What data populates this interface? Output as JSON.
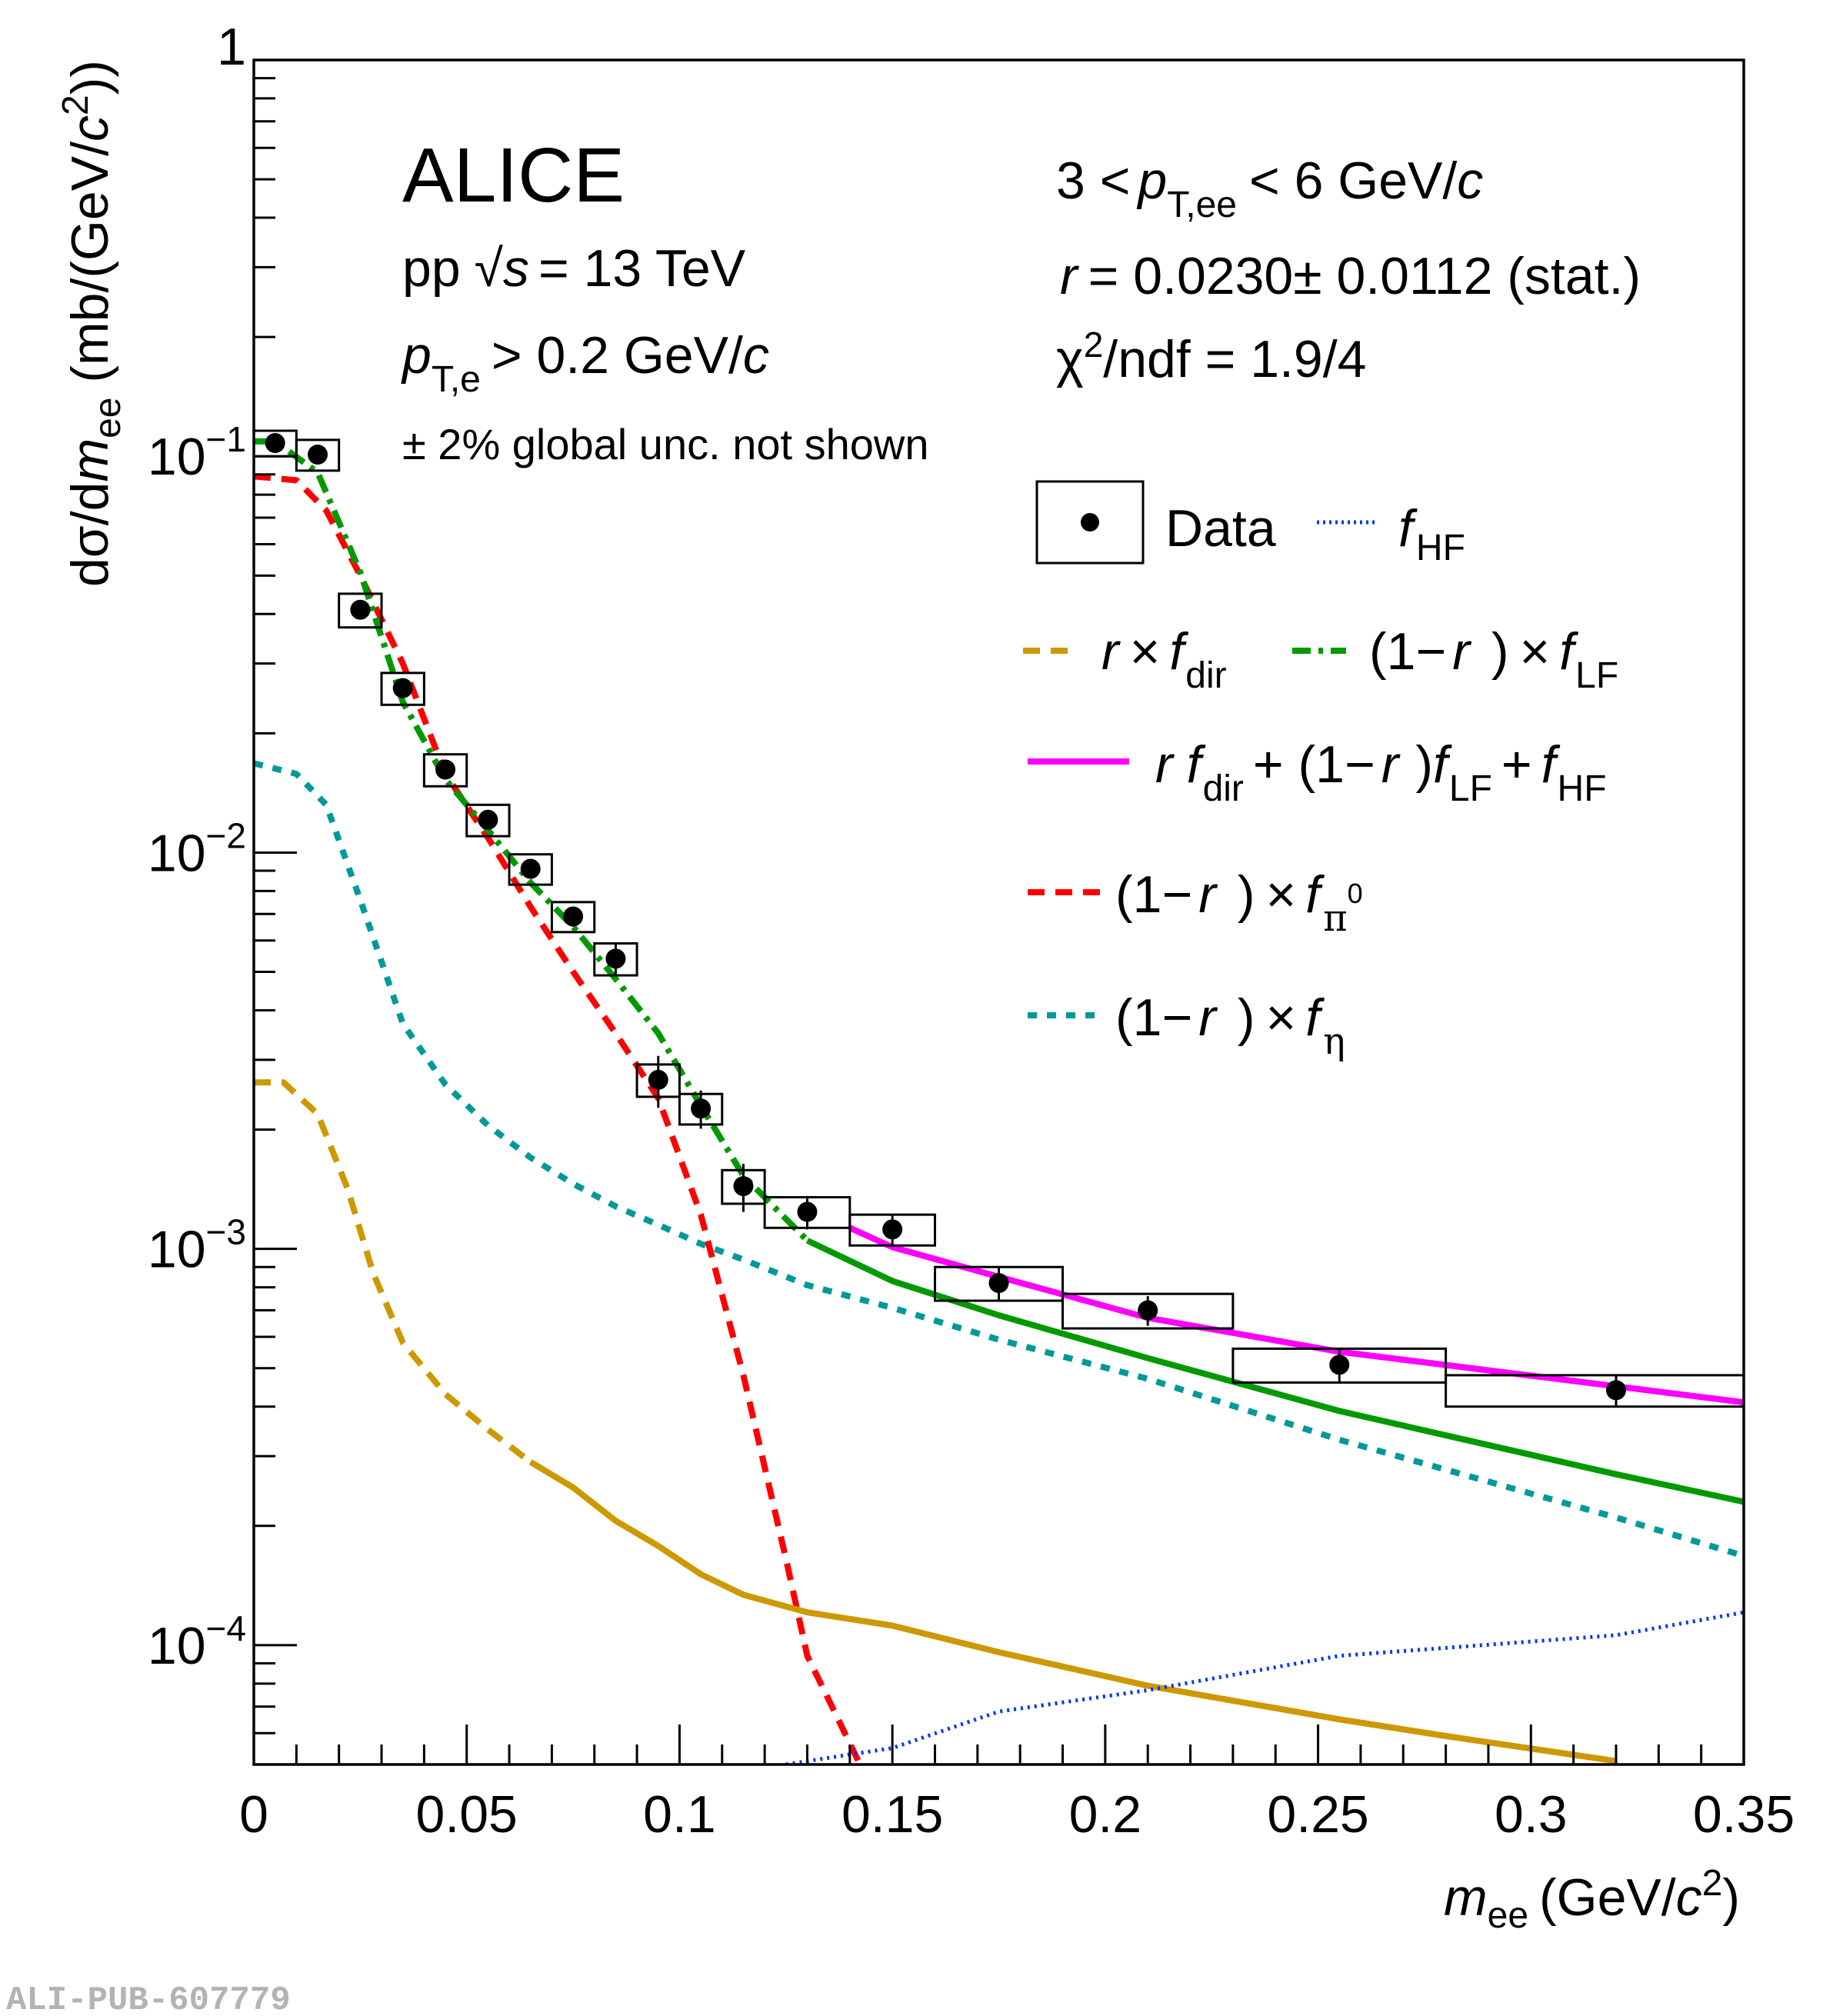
{
  "watermark": "ALI-PUB-607779",
  "annotations": {
    "experiment": "ALICE",
    "system": "pp",
    "sqrt_s_symbol": "√",
    "sqrt_s_var": "s",
    "energy": "= 13 TeV",
    "pt_cut_var": "p",
    "pt_cut_sub": "T,e",
    "pt_cut_value": "> 0.2 GeV/",
    "pt_cut_unit_c": "c",
    "global_unc": "± 2% global unc. not shown",
    "pt_range_prefix": "3 <",
    "pt_range_var": "p",
    "pt_range_sub": "T,ee",
    "pt_range_suffix": "< 6 GeV/",
    "pt_range_c": "c",
    "r_var": "r",
    "r_value": "= 0.0230± 0.0112 (stat.)",
    "chi2_symbol": "χ",
    "chi2_sup": "2",
    "chi2_value": "/ndf = 1.9/4"
  },
  "legend": {
    "data": "Data",
    "hf_f": "f",
    "hf_sub": "HF",
    "dir_r": "r",
    "dir_times": "×",
    "dir_f": "f",
    "dir_sub": "dir",
    "lf_open": "(1−",
    "lf_r": "r",
    "lf_close": ")",
    "lf_times": "×",
    "lf_f": "f",
    "lf_sub": "LF",
    "sum_r": "r",
    "sum_f1": "f",
    "sum_sub1": "dir",
    "sum_mid": "+ (1−",
    "sum_r2": "r",
    "sum_close": ")",
    "sum_f2": "f",
    "sum_sub2": "LF",
    "sum_plus": "+",
    "sum_f3": "f",
    "sum_sub3": "HF",
    "pi_open": "(1−",
    "pi_r": "r",
    "pi_close": ")",
    "pi_times": "×",
    "pi_f": "f",
    "pi_sub": "π",
    "pi_sup": "0",
    "eta_open": "(1−",
    "eta_r": "r",
    "eta_close": ")",
    "eta_times": "×",
    "eta_f": "f",
    "eta_sub": "η"
  },
  "chart_data": {
    "type": "scatter",
    "title": "",
    "xlabel": "m_ee (GeV/c²)",
    "xlabel_var": "m",
    "xlabel_sub": "ee",
    "xlabel_unit": "(GeV/",
    "xlabel_c": "c",
    "xlabel_sup": "2",
    "xlabel_end": ")",
    "ylabel": "dσ/dm_ee (mb/(GeV/c²))",
    "ylabel_part1": "dσ/d",
    "ylabel_var": "m",
    "ylabel_sub": "ee",
    "ylabel_unit": " (mb/(GeV/",
    "ylabel_c": "c",
    "ylabel_sup": "2",
    "ylabel_end": "))",
    "xlim": [
      0,
      0.35
    ],
    "ylim": [
      5e-05,
      1
    ],
    "yscale": "log",
    "grid": false,
    "legend_position": "right",
    "x_ticks": [
      0,
      0.05,
      0.1,
      0.15,
      0.2,
      0.25,
      0.3,
      0.35
    ],
    "x_tick_labels": [
      "0",
      "0.05",
      "0.1",
      "0.15",
      "0.2",
      "0.25",
      "0.3",
      "0.35"
    ],
    "y_ticks": [
      1,
      0.1,
      0.01,
      0.001,
      0.0001
    ],
    "y_tick_labels": [
      {
        "base": "1",
        "exp": ""
      },
      {
        "base": "10",
        "exp": "−1"
      },
      {
        "base": "10",
        "exp": "−2"
      },
      {
        "base": "10",
        "exp": "−3"
      },
      {
        "base": "10",
        "exp": "−4"
      }
    ],
    "data": {
      "name": "Data",
      "color": "#000000",
      "points": [
        {
          "x": 0.005,
          "y": 0.108,
          "xlo": 0.0,
          "xhi": 0.01,
          "stat": 0.002,
          "syst": 0.008
        },
        {
          "x": 0.015,
          "y": 0.101,
          "xlo": 0.01,
          "xhi": 0.02,
          "stat": 0.002,
          "syst": 0.009
        },
        {
          "x": 0.025,
          "y": 0.041,
          "xlo": 0.02,
          "xhi": 0.03,
          "stat": 0.001,
          "syst": 0.004
        },
        {
          "x": 0.035,
          "y": 0.026,
          "xlo": 0.03,
          "xhi": 0.04,
          "stat": 0.0008,
          "syst": 0.0024
        },
        {
          "x": 0.045,
          "y": 0.0162,
          "xlo": 0.04,
          "xhi": 0.05,
          "stat": 0.0006,
          "syst": 0.0015
        },
        {
          "x": 0.055,
          "y": 0.0121,
          "xlo": 0.05,
          "xhi": 0.06,
          "stat": 0.0005,
          "syst": 0.0011
        },
        {
          "x": 0.065,
          "y": 0.0091,
          "xlo": 0.06,
          "xhi": 0.07,
          "stat": 0.0004,
          "syst": 0.0008
        },
        {
          "x": 0.075,
          "y": 0.0069,
          "xlo": 0.07,
          "xhi": 0.08,
          "stat": 0.0004,
          "syst": 0.0006
        },
        {
          "x": 0.085,
          "y": 0.0054,
          "xlo": 0.08,
          "xhi": 0.09,
          "stat": 0.0005,
          "syst": 0.0005
        },
        {
          "x": 0.095,
          "y": 0.00267,
          "xlo": 0.09,
          "xhi": 0.1,
          "stat": 0.0004,
          "syst": 0.00025
        },
        {
          "x": 0.105,
          "y": 0.00226,
          "xlo": 0.1,
          "xhi": 0.11,
          "stat": 0.00025,
          "syst": 0.0002
        },
        {
          "x": 0.115,
          "y": 0.00144,
          "xlo": 0.11,
          "xhi": 0.12,
          "stat": 0.0002,
          "syst": 0.00014
        },
        {
          "x": 0.13,
          "y": 0.00124,
          "xlo": 0.12,
          "xhi": 0.14,
          "stat": 0.00012,
          "syst": 0.00011
        },
        {
          "x": 0.15,
          "y": 0.00112,
          "xlo": 0.14,
          "xhi": 0.16,
          "stat": 0.0001,
          "syst": 0.0001
        },
        {
          "x": 0.175,
          "y": 0.00082,
          "xlo": 0.16,
          "xhi": 0.19,
          "stat": 8e-05,
          "syst": 8e-05
        },
        {
          "x": 0.21,
          "y": 0.0007,
          "xlo": 0.19,
          "xhi": 0.23,
          "stat": 6e-05,
          "syst": 7e-05
        },
        {
          "x": 0.255,
          "y": 0.00051,
          "xlo": 0.23,
          "xhi": 0.28,
          "stat": 5e-05,
          "syst": 5e-05
        },
        {
          "x": 0.32,
          "y": 0.00044,
          "xlo": 0.28,
          "xhi": 0.35,
          "stat": 4e-05,
          "syst": 4e-05
        }
      ]
    },
    "series": [
      {
        "name": "(1−r)×f_eta",
        "color": "#009999",
        "style": "dotted",
        "x": [
          0,
          0.01,
          0.017,
          0.025,
          0.035,
          0.045,
          0.055,
          0.065,
          0.075,
          0.085,
          0.095,
          0.105,
          0.115,
          0.13,
          0.15,
          0.175,
          0.21,
          0.255,
          0.32,
          0.35
        ],
        "y": [
          0.0168,
          0.0158,
          0.0132,
          0.0076,
          0.0037,
          0.0026,
          0.00205,
          0.0017,
          0.00146,
          0.00128,
          0.00115,
          0.00103,
          0.00094,
          0.00081,
          0.00071,
          0.00059,
          0.00047,
          0.00033,
          0.00021,
          0.000168
        ]
      },
      {
        "name": "(1−r)×f_pi0",
        "color": "#ff0000",
        "style": "dashed",
        "x": [
          0,
          0.01,
          0.017,
          0.025,
          0.035,
          0.045,
          0.055,
          0.065,
          0.075,
          0.085,
          0.095,
          0.105,
          0.115,
          0.125,
          0.13,
          0.135,
          0.142
        ],
        "y": [
          0.089,
          0.087,
          0.073,
          0.05,
          0.03,
          0.0158,
          0.0109,
          0.0073,
          0.005,
          0.0035,
          0.0024,
          0.00122,
          0.00048,
          0.000165,
          9.4e-05,
          7.3e-05,
          5.1e-05
        ]
      },
      {
        "name": "r×f_dir",
        "color": "#cc9900",
        "style": "dashed-then-solid",
        "dash_until": 0.06,
        "x": [
          0,
          0.007,
          0.015,
          0.022,
          0.028,
          0.035,
          0.045,
          0.055,
          0.065,
          0.075,
          0.085,
          0.095,
          0.105,
          0.115,
          0.13,
          0.15,
          0.175,
          0.21,
          0.255,
          0.28,
          0.32
        ],
        "y": [
          0.00263,
          0.00263,
          0.00219,
          0.00142,
          0.00087,
          0.00058,
          0.00043,
          0.00035,
          0.00029,
          0.00025,
          0.000206,
          0.000178,
          0.000151,
          0.000134,
          0.000121,
          0.000112,
          9.6e-05,
          7.9e-05,
          6.5e-05,
          5.9e-05,
          5.1e-05
        ]
      },
      {
        "name": "f_HF",
        "color": "#0033ff",
        "style": "fine-dotted",
        "x": [
          0.125,
          0.14,
          0.15,
          0.175,
          0.21,
          0.255,
          0.32,
          0.35
        ],
        "y": [
          5e-05,
          5.3e-05,
          5.5e-05,
          6.8e-05,
          7.7e-05,
          9.4e-05,
          0.000106,
          0.000121
        ]
      },
      {
        "name": "(1−r)×f_LF",
        "color": "#009900",
        "style": "dashdot-then-solid",
        "dash_until": 0.13,
        "x": [
          0,
          0.005,
          0.015,
          0.025,
          0.035,
          0.045,
          0.055,
          0.065,
          0.075,
          0.085,
          0.095,
          0.105,
          0.115,
          0.13,
          0.15,
          0.175,
          0.21,
          0.255,
          0.32,
          0.35
        ],
        "y": [
          0.109,
          0.109,
          0.091,
          0.051,
          0.024,
          0.0153,
          0.0114,
          0.0084,
          0.0065,
          0.0048,
          0.0035,
          0.0023,
          0.00153,
          0.00105,
          0.00083,
          0.00068,
          0.00053,
          0.00039,
          0.00027,
          0.00023
        ]
      },
      {
        "name": "r f_dir + (1−r) f_LF + f_HF",
        "color": "#ff00ff",
        "style": "solid",
        "x": [
          0.14,
          0.15,
          0.175,
          0.21,
          0.255,
          0.32,
          0.35
        ],
        "y": [
          0.00113,
          0.00101,
          0.00085,
          0.00067,
          0.00055,
          0.00045,
          0.00041
        ]
      }
    ]
  }
}
